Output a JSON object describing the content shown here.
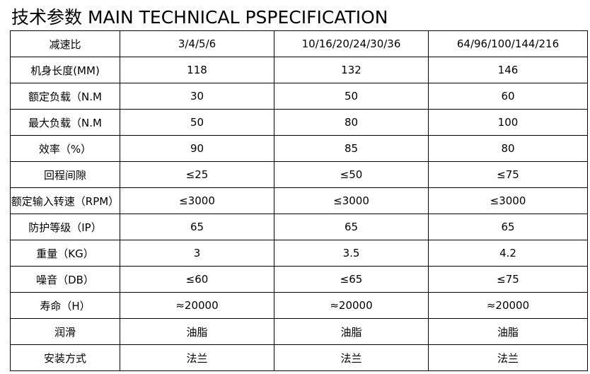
{
  "title": "技术参数 MAIN TECHNICAL PSPECIFICATION",
  "table": {
    "rows": [
      {
        "label": "减速比",
        "values": [
          "3/4/5/6",
          "10/16/20/24/30/36",
          "64/96/100/144/216"
        ]
      },
      {
        "label": "机身长度(MM)",
        "values": [
          "118",
          "132",
          "146"
        ]
      },
      {
        "label": "额定负载（N.M",
        "values": [
          "30",
          "50",
          "60"
        ]
      },
      {
        "label": "最大负载（N.M",
        "values": [
          "50",
          "80",
          "100"
        ]
      },
      {
        "label": "效率（%）",
        "values": [
          "90",
          "85",
          "80"
        ]
      },
      {
        "label": "回程间隙",
        "values": [
          "≤25",
          "≤50",
          "≤75"
        ]
      },
      {
        "label": "额定输入转速（RPM）",
        "values": [
          "≤3000",
          "≤3000",
          "≤3000"
        ]
      },
      {
        "label": "防护等级（IP）",
        "values": [
          "65",
          "65",
          "65"
        ]
      },
      {
        "label": "重量（KG）",
        "values": [
          "3",
          "3.5",
          "4.2"
        ]
      },
      {
        "label": "噪音（DB）",
        "values": [
          "≤60",
          "≤65",
          "≤75"
        ]
      },
      {
        "label": "寿命（H）",
        "values": [
          "≈20000",
          "≈20000",
          "≈20000"
        ]
      },
      {
        "label": "润滑",
        "values": [
          "油脂",
          "油脂",
          "油脂"
        ]
      },
      {
        "label": "安装方式",
        "values": [
          "法兰",
          "法兰",
          "法兰"
        ]
      }
    ]
  }
}
